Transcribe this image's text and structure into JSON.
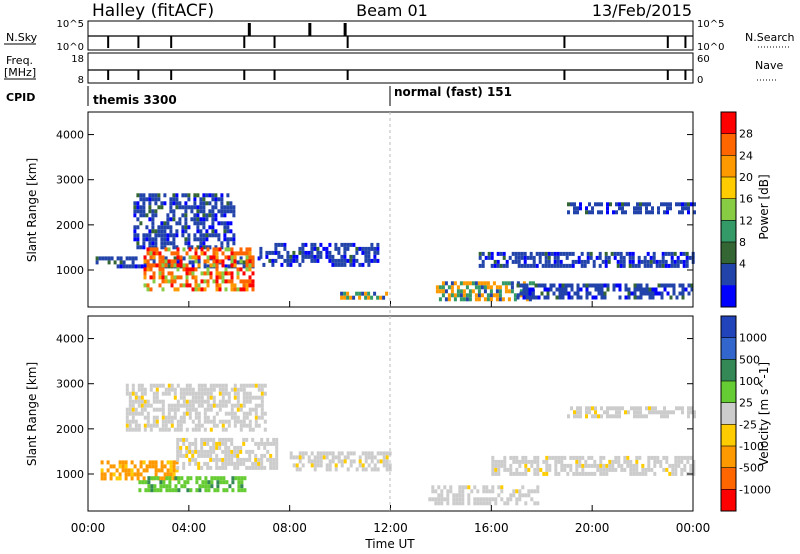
{
  "header": {
    "station": "Halley (fitACF)",
    "beam": "Beam 01",
    "date": "13/Feb/2015"
  },
  "summary": {
    "nsky_label": "N.Sky",
    "nsky_ticks": [
      "10^5",
      "10^0"
    ],
    "nsearch_label": "N.Search",
    "nsearch_ticks": [
      "10^5",
      "10^0"
    ],
    "freq_label": "Freq.",
    "freq_unit": "[MHz]",
    "freq_ticks": [
      "18",
      "8"
    ],
    "nave_label": "Nave",
    "nave_ticks": [
      "60",
      "0"
    ],
    "cpid_label": "CPID",
    "cpid_segments": [
      {
        "name": "themis 3300",
        "start_hour": 0
      },
      {
        "name": "normal (fast) 151",
        "start_hour": 12
      }
    ]
  },
  "chart_data": [
    {
      "type": "heatmap",
      "name": "power",
      "ylabel": "Slant Range [km]",
      "ylim": [
        180,
        4500
      ],
      "yticks": [
        1000,
        2000,
        3000,
        4000
      ],
      "xlim_hours": [
        0,
        24
      ],
      "colorbar_label": "Power [dB]",
      "colorbar_ticks": [
        "28",
        "24",
        "20",
        "16",
        "12",
        "8",
        "4"
      ],
      "colorbar_colors": [
        "#ff0000",
        "#ff6600",
        "#ff9900",
        "#ffcc00",
        "#88cc44",
        "#339966",
        "#336633",
        "#2244aa",
        "#0000ff"
      ],
      "echo_regions": [
        {
          "x": [
            0.3,
            6.8
          ],
          "y": [
            1050,
            1300
          ],
          "level": "low"
        },
        {
          "x": [
            6.8,
            11.5
          ],
          "y": [
            1100,
            1600
          ],
          "level": "low"
        },
        {
          "x": [
            1.8,
            5.8
          ],
          "y": [
            1500,
            2700
          ],
          "level": "low"
        },
        {
          "x": [
            2.2,
            6.5
          ],
          "y": [
            550,
            1500
          ],
          "level": "high"
        },
        {
          "x": [
            10.0,
            12.0
          ],
          "y": [
            380,
            520
          ],
          "level": "mid"
        },
        {
          "x": [
            13.8,
            17.8
          ],
          "y": [
            350,
            750
          ],
          "level": "mid"
        },
        {
          "x": [
            15.5,
            24.0
          ],
          "y": [
            1100,
            1400
          ],
          "level": "low"
        },
        {
          "x": [
            19.0,
            24.0
          ],
          "y": [
            2300,
            2500
          ],
          "level": "low"
        },
        {
          "x": [
            17.0,
            24.0
          ],
          "y": [
            400,
            700
          ],
          "level": "low"
        }
      ]
    },
    {
      "type": "heatmap",
      "name": "velocity",
      "ylabel": "Slant Range [km]",
      "ylim": [
        180,
        4500
      ],
      "yticks": [
        1000,
        2000,
        3000,
        4000
      ],
      "xlim_hours": [
        0,
        24
      ],
      "xticks": [
        "00:00",
        "04:00",
        "08:00",
        "12:00",
        "16:00",
        "20:00",
        "00:00"
      ],
      "xlabel": "Time UT",
      "colorbar_label": "Velocity [m s^-1]",
      "colorbar_ticks": [
        "1000",
        "500",
        "100",
        "25",
        "-25",
        "-100",
        "-500",
        "-1000"
      ],
      "colorbar_colors": [
        "#2244bb",
        "#3366cc",
        "#338855",
        "#66cc33",
        "#cccccc",
        "#ffcc00",
        "#ff9900",
        "#ff6600",
        "#ff0000"
      ],
      "echo_regions": [
        {
          "x": [
            0.5,
            3.5
          ],
          "y": [
            900,
            1300
          ],
          "level": "neg"
        },
        {
          "x": [
            2.0,
            6.2
          ],
          "y": [
            600,
            950
          ],
          "level": "pos"
        },
        {
          "x": [
            3.5,
            7.5
          ],
          "y": [
            1100,
            1800
          ],
          "level": "neutral"
        },
        {
          "x": [
            1.5,
            7.0
          ],
          "y": [
            2000,
            3000
          ],
          "level": "neutral"
        },
        {
          "x": [
            8.0,
            12.0
          ],
          "y": [
            1100,
            1500
          ],
          "level": "neutral"
        },
        {
          "x": [
            13.5,
            17.8
          ],
          "y": [
            350,
            750
          ],
          "level": "neutral"
        },
        {
          "x": [
            16.0,
            24.0
          ],
          "y": [
            1000,
            1400
          ],
          "level": "neutral"
        },
        {
          "x": [
            19.0,
            24.0
          ],
          "y": [
            2300,
            2500
          ],
          "level": "neutral"
        }
      ]
    }
  ]
}
